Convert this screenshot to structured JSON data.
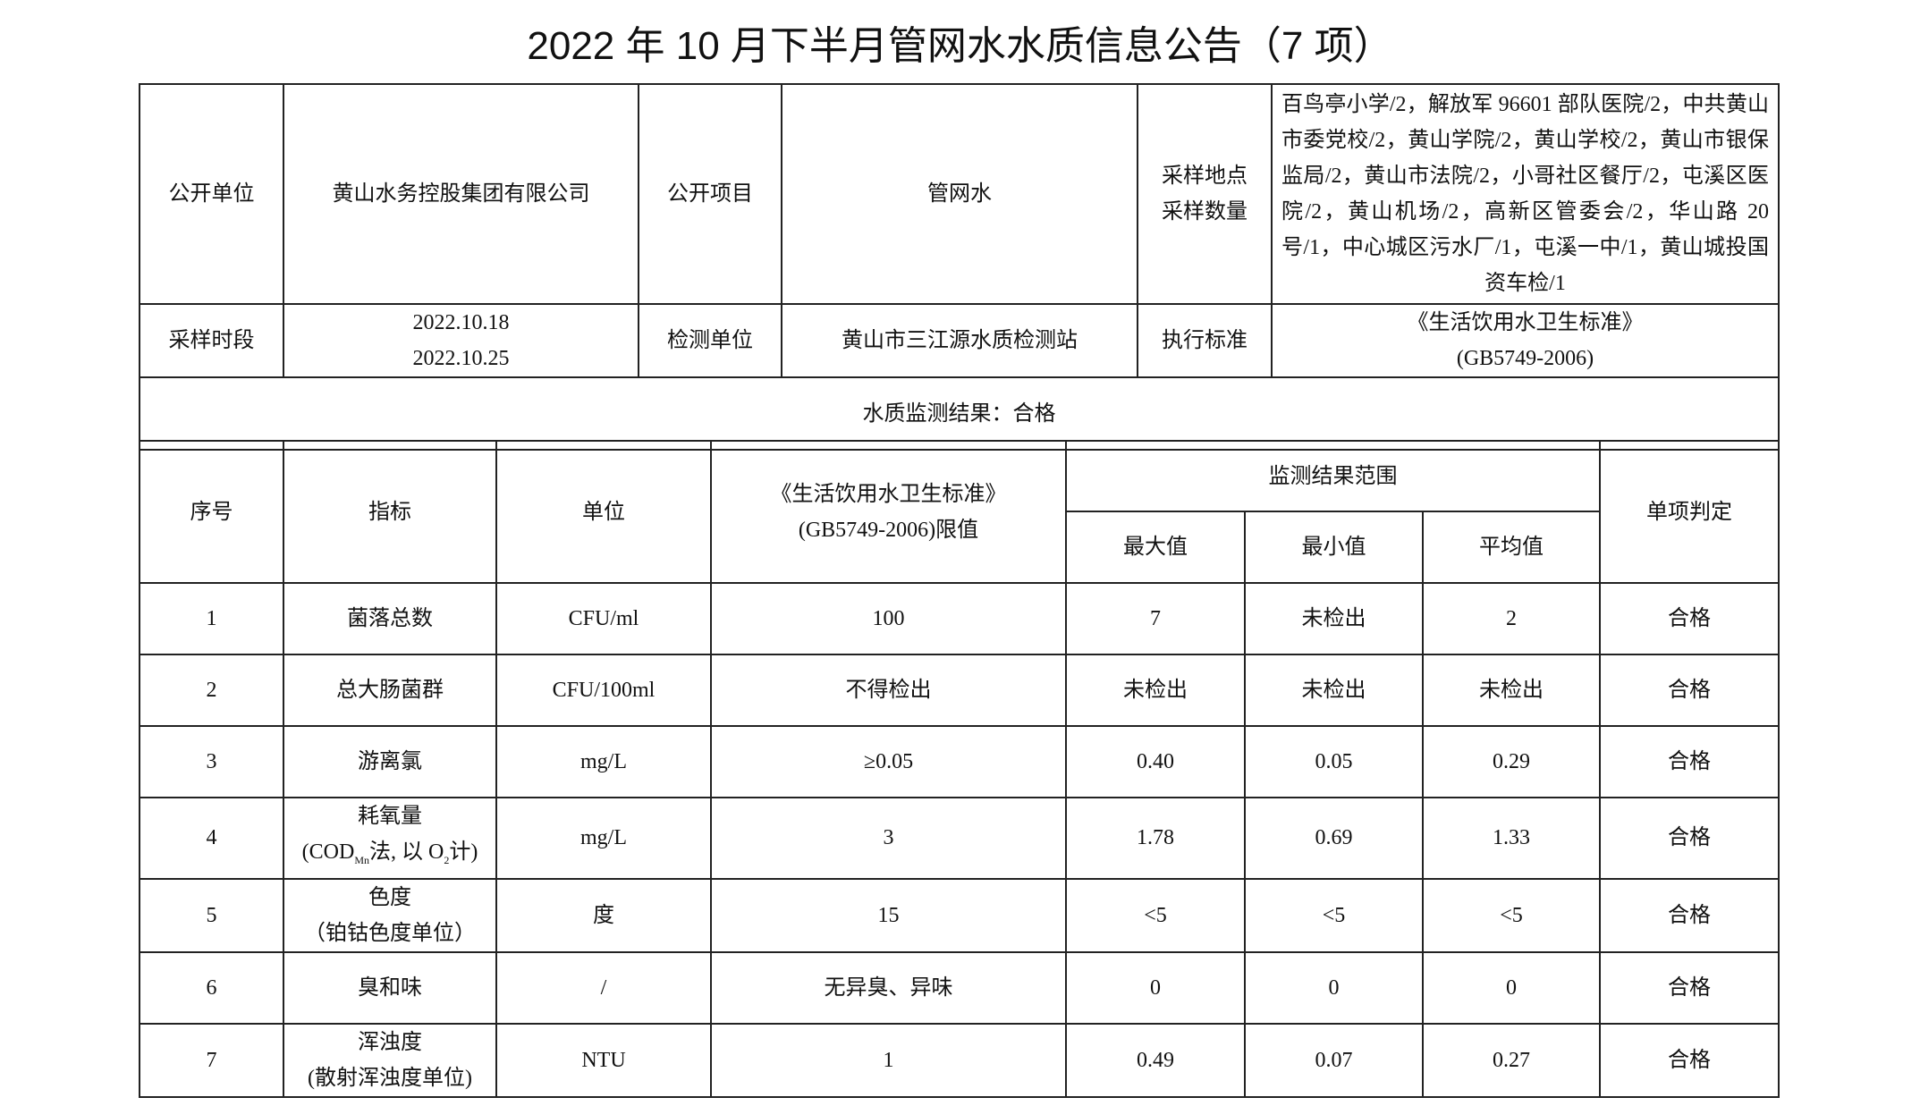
{
  "title": "2022 年 10 月下半月管网水水质信息公告（7 项）",
  "info": {
    "unit_label": "公开单位",
    "unit_value": "黄山水务控股集团有限公司",
    "item_label": "公开项目",
    "item_value": "管网水",
    "sites_label_1": "采样地点",
    "sites_label_2": "采样数量",
    "sites_value": "百鸟亭小学/2，解放军 96601 部队医院/2，中共黄山市委党校/2，黄山学院/2，黄山学校/2，黄山市银保监局/2，黄山市法院/2，小哥社区餐厅/2，屯溪区医院/2，黄山机场/2，高新区管委会/2，华山路 20 号/1，中心城区污水厂/1，屯溪一中/1，黄山城投国资车检/1",
    "period_label": "采样时段",
    "period_start": "2022.10.18",
    "period_end": "2022.10.25",
    "lab_label": "检测单位",
    "lab_value": "黄山市三江源水质检测站",
    "standard_label": "执行标准",
    "standard_name": "《生活饮用水卫生标准》",
    "standard_code": "(GB5749-2006)",
    "result": "水质监测结果：合格"
  },
  "headers": {
    "no": "序号",
    "indicator": "指标",
    "unit": "单位",
    "limit_1": "《生活饮用水卫生标准》",
    "limit_2": "(GB5749-2006)限值",
    "range": "监测结果范围",
    "max": "最大值",
    "min": "最小值",
    "avg": "平均值",
    "verdict": "单项判定"
  },
  "rows": [
    {
      "no": "1",
      "name": "菌落总数",
      "sub": "",
      "unit": "CFU/ml",
      "limit": "100",
      "max": "7",
      "min": "未检出",
      "avg": "2",
      "verdict": "合格"
    },
    {
      "no": "2",
      "name": "总大肠菌群",
      "sub": "",
      "unit": "CFU/100ml",
      "limit": "不得检出",
      "max": "未检出",
      "min": "未检出",
      "avg": "未检出",
      "verdict": "合格"
    },
    {
      "no": "3",
      "name": "游离氯",
      "sub": "",
      "unit": "mg/L",
      "limit": "≥0.05",
      "max": "0.40",
      "min": "0.05",
      "avg": "0.29",
      "verdict": "合格"
    },
    {
      "no": "4",
      "name": "耗氧量",
      "sub": "(COD",
      "sub_mn": "Mn",
      "sub_mid": "法, 以 O",
      "sub_2": "2",
      "sub_end": "计)",
      "unit": "mg/L",
      "limit": "3",
      "max": "1.78",
      "min": "0.69",
      "avg": "1.33",
      "verdict": "合格"
    },
    {
      "no": "5",
      "name": "色度",
      "sub": "（铂钴色度单位）",
      "unit": "度",
      "limit": "15",
      "max": "<5",
      "min": "<5",
      "avg": "<5",
      "verdict": "合格"
    },
    {
      "no": "6",
      "name": "臭和味",
      "sub": "",
      "unit": "/",
      "limit": "无异臭、异味",
      "max": "0",
      "min": "0",
      "avg": "0",
      "verdict": "合格"
    },
    {
      "no": "7",
      "name": "浑浊度",
      "sub": "(散射浑浊度单位)",
      "unit": "NTU",
      "limit": "1",
      "max": "0.49",
      "min": "0.07",
      "avg": "0.27",
      "verdict": "合格"
    }
  ]
}
